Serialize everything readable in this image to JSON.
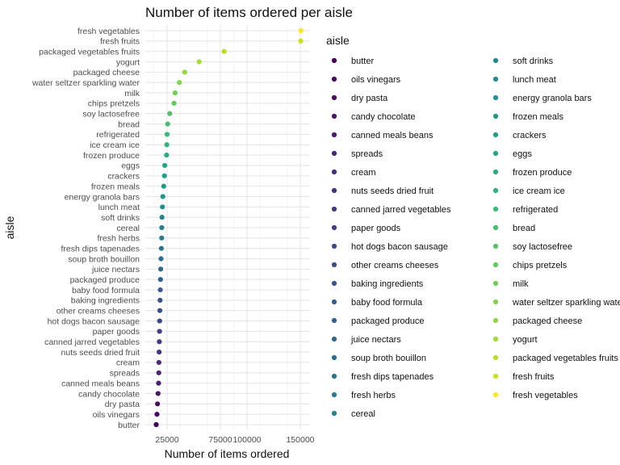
{
  "chart_data": {
    "type": "scatter",
    "title": "Number of items ordered per aisle",
    "xlabel": "Number of items ordered",
    "ylabel": "aisle",
    "xlim": [
      0,
      160000
    ],
    "x_ticks": [
      {
        "value": 25000,
        "label": "25000"
      },
      {
        "value": 75000,
        "label": "75000"
      },
      {
        "value": 100000,
        "label": "100000"
      },
      {
        "value": 150000,
        "label": "150000"
      }
    ],
    "grid": true,
    "legend": {
      "title": "aisle",
      "placement": "right",
      "columns": 2
    },
    "color_scale": "viridis",
    "points": [
      {
        "aisle": "butter",
        "value": 14800,
        "color": "#440154"
      },
      {
        "aisle": "oils vinegars",
        "value": 15500,
        "color": "#46085c"
      },
      {
        "aisle": "dry pasta",
        "value": 16000,
        "color": "#471063"
      },
      {
        "aisle": "candy chocolate",
        "value": 16500,
        "color": "#481769"
      },
      {
        "aisle": "canned meals beans",
        "value": 17000,
        "color": "#481d6f"
      },
      {
        "aisle": "spreads",
        "value": 17200,
        "color": "#472574"
      },
      {
        "aisle": "cream",
        "value": 17300,
        "color": "#462c7b"
      },
      {
        "aisle": "nuts seeds dried fruit",
        "value": 17500,
        "color": "#45337f"
      },
      {
        "aisle": "canned jarred vegetables",
        "value": 17700,
        "color": "#433982"
      },
      {
        "aisle": "paper goods",
        "value": 17900,
        "color": "#414085"
      },
      {
        "aisle": "hot dogs bacon sausage",
        "value": 18000,
        "color": "#3e4889"
      },
      {
        "aisle": "other creams cheeses",
        "value": 18200,
        "color": "#3c4d8a"
      },
      {
        "aisle": "baking ingredients",
        "value": 18400,
        "color": "#39548b"
      },
      {
        "aisle": "baby food formula",
        "value": 18600,
        "color": "#365b8c"
      },
      {
        "aisle": "packaged produce",
        "value": 18800,
        "color": "#33618d"
      },
      {
        "aisle": "juice nectars",
        "value": 19000,
        "color": "#30678d"
      },
      {
        "aisle": "soup broth bouillon",
        "value": 19300,
        "color": "#2d6e8e"
      },
      {
        "aisle": "fresh dips tapenades",
        "value": 19600,
        "color": "#2b748e"
      },
      {
        "aisle": "fresh herbs",
        "value": 19900,
        "color": "#287a8e"
      },
      {
        "aisle": "cereal",
        "value": 20000,
        "color": "#26818e"
      },
      {
        "aisle": "soft drinks",
        "value": 20200,
        "color": "#24868e"
      },
      {
        "aisle": "lunch meat",
        "value": 20600,
        "color": "#218d8d"
      },
      {
        "aisle": "energy granola bars",
        "value": 21000,
        "color": "#1f938c"
      },
      {
        "aisle": "frozen meals",
        "value": 21800,
        "color": "#1f998a"
      },
      {
        "aisle": "crackers",
        "value": 22500,
        "color": "#20a087"
      },
      {
        "aisle": "eggs",
        "value": 22800,
        "color": "#22a684"
      },
      {
        "aisle": "frozen produce",
        "value": 24500,
        "color": "#28ac80"
      },
      {
        "aisle": "ice cream ice",
        "value": 24700,
        "color": "#31b27b"
      },
      {
        "aisle": "refrigerated",
        "value": 25000,
        "color": "#3bb875"
      },
      {
        "aisle": "bread",
        "value": 25500,
        "color": "#47bd6e"
      },
      {
        "aisle": "soy lactosefree",
        "value": 27500,
        "color": "#54c367"
      },
      {
        "aisle": "chips pretzels",
        "value": 31500,
        "color": "#62c85f"
      },
      {
        "aisle": "milk",
        "value": 32500,
        "color": "#71cd55"
      },
      {
        "aisle": "water seltzer sparkling water",
        "value": 36500,
        "color": "#81d34b"
      },
      {
        "aisle": "packaged cheese",
        "value": 41500,
        "color": "#92d642"
      },
      {
        "aisle": "yogurt",
        "value": 55000,
        "color": "#a4db37"
      },
      {
        "aisle": "packaged vegetables fruits",
        "value": 78500,
        "color": "#b5de2c"
      },
      {
        "aisle": "fresh fruits",
        "value": 150400,
        "color": "#c8e022"
      },
      {
        "aisle": "fresh vegetables",
        "value": 150600,
        "color": "#fde725"
      }
    ]
  }
}
